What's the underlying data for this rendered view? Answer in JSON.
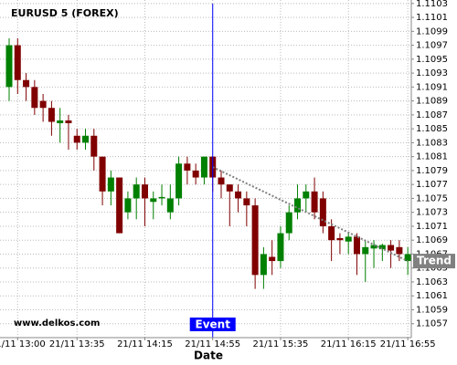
{
  "chart_data": {
    "type": "candlestick",
    "title": "EURUSD 5 (FOREX)",
    "watermark": "www.delkos.com",
    "x_label": "Date",
    "categories": [
      null,
      "21/11 13:00",
      null,
      null,
      null,
      null,
      null,
      null,
      "21/11 13:35",
      null,
      null,
      null,
      null,
      null,
      null,
      null,
      "21/11 14:15",
      null,
      null,
      null,
      null,
      null,
      null,
      null,
      "21/11 14:55",
      null,
      null,
      null,
      null,
      null,
      null,
      null,
      "21/11 15:35",
      null,
      null,
      null,
      null,
      null,
      null,
      null,
      "21/11 16:15",
      null,
      null,
      null,
      null,
      null,
      null,
      "21/11 16:55"
    ],
    "open": [
      1.1091,
      1.1097,
      1.1092,
      1.1091,
      1.1089,
      1.1088,
      1.10858,
      1.10862,
      1.1084,
      1.1083,
      1.1084,
      1.1081,
      1.1076,
      1.1078,
      1.1073,
      1.1075,
      1.1077,
      1.10745,
      1.1075,
      1.1073,
      1.1075,
      1.108,
      1.1079,
      1.1078,
      1.1081,
      1.1078,
      1.1077,
      1.1076,
      1.1075,
      1.1074,
      1.1064,
      1.10666,
      1.1066,
      1.107,
      1.1073,
      1.1075,
      1.1076,
      1.1075,
      1.1071,
      1.10693,
      1.10688,
      1.10695,
      1.1067,
      1.10678,
      1.10677,
      1.10683,
      1.1068,
      1.1066
    ],
    "high": [
      1.1098,
      1.1098,
      1.1093,
      1.1092,
      1.109,
      1.1089,
      1.1088,
      1.1087,
      1.1085,
      1.1085,
      1.1085,
      1.1081,
      1.1079,
      1.1078,
      1.1076,
      1.1078,
      1.1078,
      1.1076,
      1.1077,
      1.1077,
      1.1081,
      1.1081,
      1.108,
      1.1081,
      1.1081,
      1.1079,
      1.1077,
      1.1077,
      1.1076,
      1.1075,
      1.1068,
      1.1069,
      1.1071,
      1.1074,
      1.1077,
      1.1077,
      1.1078,
      1.1076,
      1.1072,
      1.107,
      1.107,
      1.107,
      1.1069,
      1.1069,
      1.10685,
      1.1069,
      1.1069,
      1.1068
    ],
    "low": [
      1.1089,
      1.109,
      1.1089,
      1.1087,
      1.1086,
      1.1084,
      1.1083,
      1.1082,
      1.1082,
      1.1082,
      1.1079,
      1.1074,
      1.1074,
      1.107,
      1.1072,
      1.1072,
      1.1071,
      1.1072,
      1.1074,
      1.1072,
      1.1074,
      1.1077,
      1.1077,
      1.1077,
      1.1076,
      1.1075,
      1.1071,
      1.1073,
      1.1071,
      1.1062,
      1.1062,
      1.1064,
      1.1065,
      1.1069,
      1.1072,
      1.1073,
      1.1072,
      1.107,
      1.1066,
      1.1067,
      1.1067,
      1.1064,
      1.1063,
      1.1065,
      1.1066,
      1.1065,
      1.1066,
      1.1064
    ],
    "close": [
      1.1097,
      1.1092,
      1.1091,
      1.1088,
      1.1088,
      1.1086,
      1.10862,
      1.10858,
      1.1083,
      1.1084,
      1.1081,
      1.1076,
      1.1078,
      1.107,
      1.1075,
      1.1077,
      1.1075,
      1.1075,
      1.10752,
      1.1075,
      1.108,
      1.1079,
      1.1078,
      1.1081,
      1.1078,
      1.1077,
      1.1076,
      1.1075,
      1.1074,
      1.1064,
      1.1067,
      1.1066,
      1.107,
      1.1073,
      1.1075,
      1.1076,
      1.1073,
      1.1071,
      1.1069,
      1.1069,
      1.10695,
      1.1067,
      1.1068,
      1.10683,
      1.10683,
      1.10675,
      1.1067,
      1.1067
    ],
    "up_color": "#008000",
    "down_color": "#800000",
    "ylim": [
      1.1055,
      1.11035
    ],
    "yticks": [
      1.1057,
      1.1059,
      1.1061,
      1.1063,
      1.1065,
      1.1067,
      1.1069,
      1.1071,
      1.1073,
      1.1075,
      1.1077,
      1.1079,
      1.1081,
      1.1083,
      1.1085,
      1.1087,
      1.1089,
      1.1091,
      1.1093,
      1.1095,
      1.1097,
      1.1099,
      1.1101,
      1.1103
    ],
    "grid": true,
    "event": {
      "label": "Event",
      "index": 24,
      "color": "#0000ff"
    },
    "trend": {
      "label": "Trend",
      "from": {
        "index": 24,
        "value": 1.10795
      },
      "to": {
        "index": 47,
        "value": 1.1066
      },
      "color": "#808080"
    }
  }
}
